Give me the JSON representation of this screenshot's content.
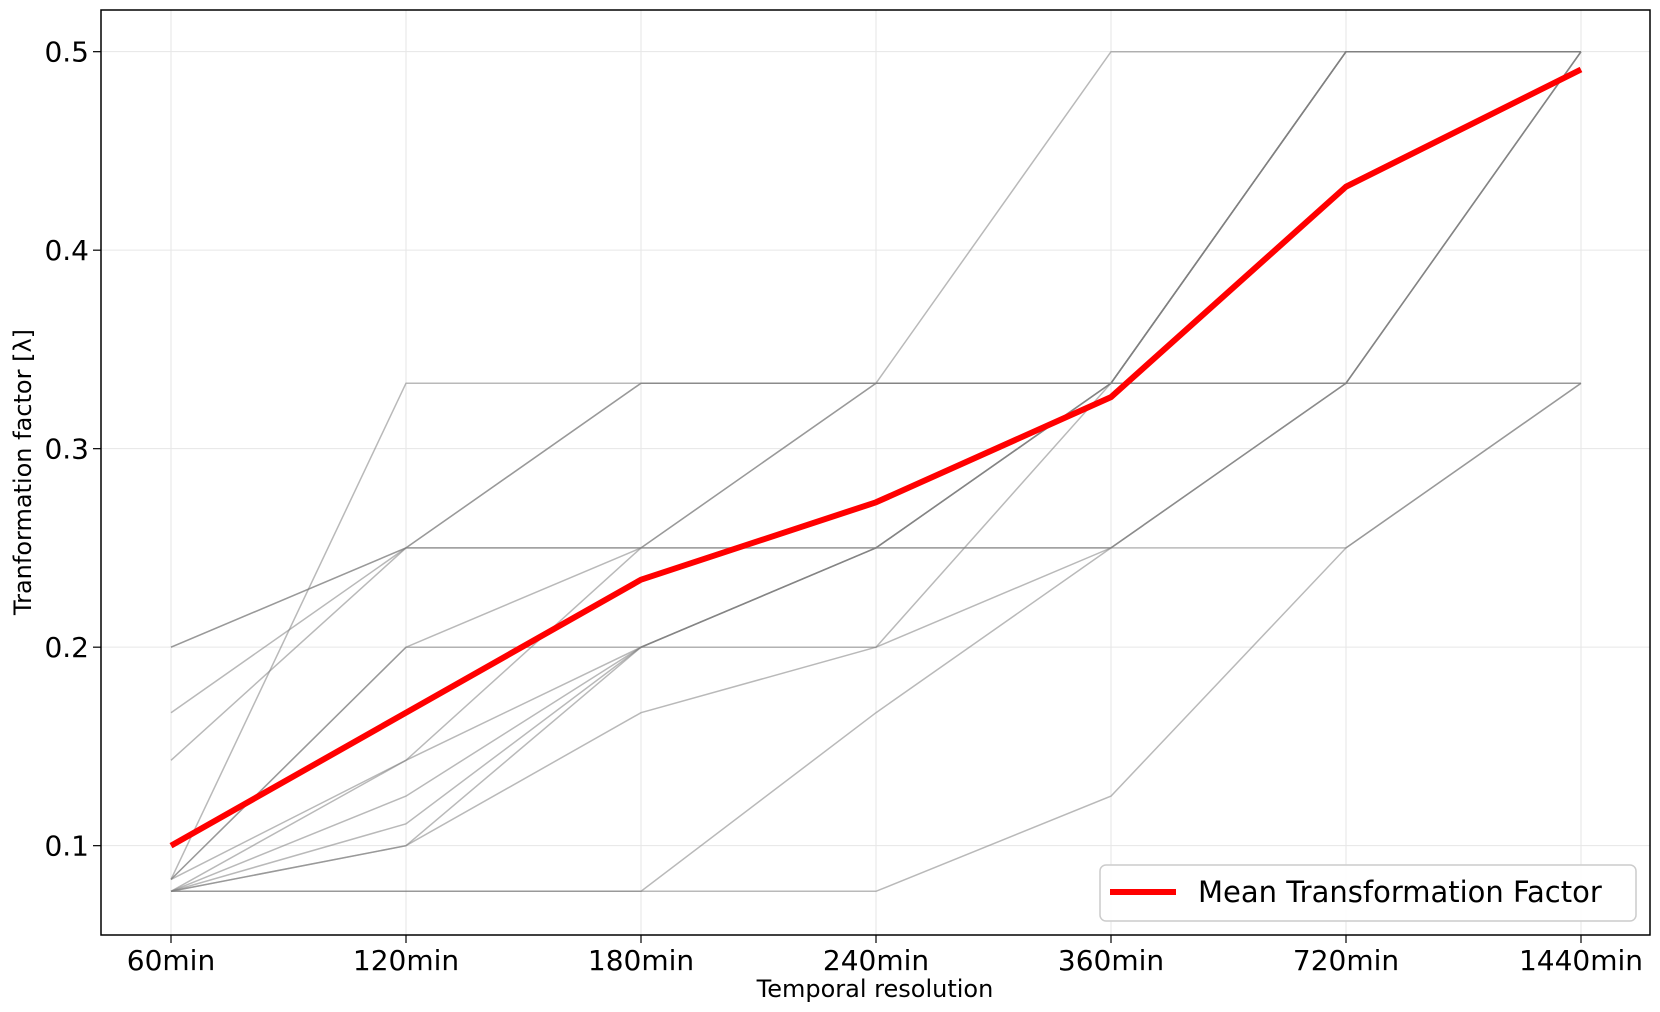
{
  "chart_data": {
    "type": "line",
    "title": "",
    "xlabel": "Temporal resolution",
    "ylabel": "Tranformation factor [λ]",
    "categories": [
      "60min",
      "120min",
      "180min",
      "240min",
      "360min",
      "720min",
      "1440min"
    ],
    "ylim": [
      0.055,
      0.521
    ],
    "yticks": [
      0.1,
      0.2,
      0.3,
      0.4,
      0.5
    ],
    "ytick_labels": [
      "0.1",
      "0.2",
      "0.3",
      "0.4",
      "0.5"
    ],
    "grid": true,
    "legend_position": "bottom-right",
    "mean_series": {
      "name": "Mean Transformation Factor",
      "color": "#ff0000",
      "values": [
        0.1,
        0.167,
        0.234,
        0.273,
        0.326,
        0.432,
        0.491
      ]
    },
    "individual_series_color": "#808080",
    "individual_series": [
      {
        "values": [
          0.2,
          0.25,
          0.333,
          0.333,
          0.333,
          0.333,
          0.333
        ]
      },
      {
        "values": [
          0.2,
          0.25,
          0.25,
          0.25,
          0.25,
          0.333,
          0.5
        ]
      },
      {
        "values": [
          0.167,
          0.25,
          0.333,
          0.333,
          0.333,
          0.5,
          0.5
        ]
      },
      {
        "values": [
          0.143,
          0.25,
          0.25,
          0.333,
          0.333,
          0.5,
          0.5
        ]
      },
      {
        "values": [
          0.083,
          0.333,
          0.333,
          0.333,
          0.5,
          0.5,
          0.5
        ]
      },
      {
        "values": [
          0.083,
          0.2,
          0.25,
          0.25,
          0.333,
          0.5,
          0.5
        ]
      },
      {
        "values": [
          0.083,
          0.2,
          0.2,
          0.25,
          0.333,
          0.5,
          0.5
        ]
      },
      {
        "values": [
          0.083,
          0.143,
          0.25,
          0.333,
          0.333,
          0.333,
          0.5
        ]
      },
      {
        "values": [
          0.077,
          0.143,
          0.2,
          0.25,
          0.333,
          0.333,
          0.5
        ]
      },
      {
        "values": [
          0.077,
          0.125,
          0.2,
          0.2,
          0.333,
          0.5,
          0.5
        ]
      },
      {
        "values": [
          0.077,
          0.111,
          0.2,
          0.25,
          0.333,
          0.5,
          0.5
        ]
      },
      {
        "values": [
          0.077,
          0.1,
          0.2,
          0.25,
          0.25,
          0.333,
          0.5
        ]
      },
      {
        "values": [
          0.077,
          0.1,
          0.167,
          0.2,
          0.25,
          0.333,
          0.333
        ]
      },
      {
        "values": [
          0.077,
          0.077,
          0.077,
          0.167,
          0.25,
          0.25,
          0.333
        ]
      },
      {
        "values": [
          0.077,
          0.077,
          0.077,
          0.077,
          0.125,
          0.25,
          0.333
        ]
      }
    ]
  }
}
